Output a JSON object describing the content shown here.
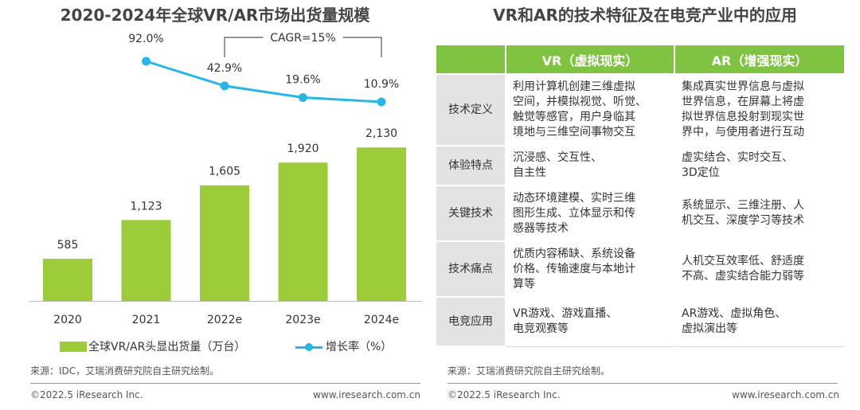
{
  "left": {
    "title": "2020-2024年全球VR/AR市场出货量规模",
    "cagr_label": "CAGR=15%",
    "legend": {
      "bar_label": "全球VR/AR头显出货量（万台）",
      "line_label": "增长率（%）"
    },
    "source": "来源：IDC，艾瑞消费研究院自主研究绘制。",
    "footer_left": "©2022.5 iResearch Inc.",
    "footer_right": "www.iresearch.com.cn"
  },
  "chart_data": {
    "type": "bar",
    "title": "2020-2024年全球VR/AR市场出货量规模",
    "categories": [
      "2020",
      "2021",
      "2022e",
      "2023e",
      "2024e"
    ],
    "series": [
      {
        "name": "全球VR/AR头显出货量（万台）",
        "type": "bar",
        "values": [
          585,
          1123,
          1605,
          1920,
          2130
        ],
        "labels": [
          "585",
          "1,123",
          "1,605",
          "1,920",
          "2,130"
        ],
        "color": "#9ccc3a"
      },
      {
        "name": "增长率（%）",
        "type": "line",
        "x": [
          "2021",
          "2022e",
          "2023e",
          "2024e"
        ],
        "values": [
          92.0,
          42.9,
          19.6,
          10.9
        ],
        "labels": [
          "92.0%",
          "42.9%",
          "19.6%",
          "10.9%"
        ],
        "color": "#29b6e6"
      }
    ],
    "annotations": [
      "CAGR=15%"
    ],
    "grid": false,
    "legend_position": "bottom"
  },
  "right": {
    "title": "VR和AR的技术特征及在电竞产业中的应用",
    "headers": {
      "vr": "VR（虚拟现实）",
      "ar": "AR（增强现实）"
    },
    "rows": [
      {
        "label": "技术定义",
        "vr": "利用计算机创建三维虚拟\n空间，并模拟视觉、听觉、\n触觉等感官，用户身临其\n境地与三维空间事物交互",
        "ar": "集成真实世界信息与虚拟\n世界信息，在屏幕上将虚\n拟世界信息投射到现实世\n界中，与使用者进行互动"
      },
      {
        "label": "体验特点",
        "vr": "沉浸感、交互性、\n自主性",
        "ar": "虚实结合、实时交互、\n3D定位"
      },
      {
        "label": "关键技术",
        "vr": "动态环境建模、实时三维\n图形生成、立体显示和传\n感器等技术",
        "ar": "系统显示、三维注册、人\n机交互、深度学习等技术"
      },
      {
        "label": "技术痛点",
        "vr": "优质内容稀缺、系统设备\n价格、传输速度与本地计\n算等",
        "ar": "人机交互效率低、舒适度\n不高、虚实结合能力弱等"
      },
      {
        "label": "电竞应用",
        "vr": "VR游戏、游戏直播、\n电竞观赛等",
        "ar": "AR游戏、虚拟角色、\n虚拟演出等"
      }
    ],
    "source": "来源：艾瑞消费研究院自主研究绘制。",
    "footer_left": "©2022.5 iResearch Inc.",
    "footer_right": "www.iresearch.com.cn"
  }
}
